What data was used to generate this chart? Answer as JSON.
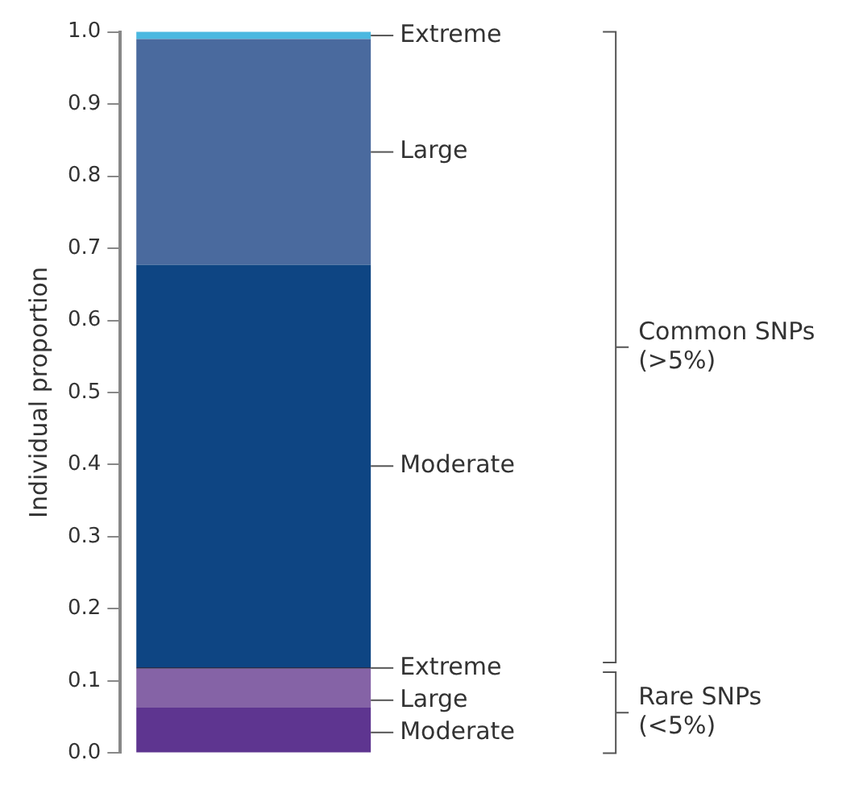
{
  "chart_data": {
    "type": "bar",
    "stacked": true,
    "categories": [
      null
    ],
    "ylabel": "Individual proportion",
    "ylim": [
      0,
      1
    ],
    "yticks": [
      {
        "value": 0,
        "label": "0.0"
      },
      0.1,
      0.2,
      0.3,
      0.4,
      0.5,
      0.6,
      0.7,
      0.8,
      0.9,
      {
        "value": 1,
        "label": "1.0"
      }
    ],
    "series": [
      {
        "name": "Moderate",
        "color": "#5e3590",
        "values": [
          0.063
        ]
      },
      {
        "name": "Large",
        "color": "#8563a6",
        "values": [
          0.054
        ]
      },
      {
        "name": "Extreme",
        "color": "#2a2a4a",
        "values": [
          0.002
        ]
      },
      {
        "name": "Moderate",
        "color": "#0e4583",
        "values": [
          0.558
        ]
      },
      {
        "name": "Large",
        "color": "#4a6a9e",
        "values": [
          0.313
        ]
      },
      {
        "name": "Extreme",
        "color": "#4bb8e0",
        "values": [
          0.01
        ]
      }
    ],
    "annotations": [
      "Common SNPs (>5%)",
      "Rare SNPs (<5%)"
    ]
  }
}
